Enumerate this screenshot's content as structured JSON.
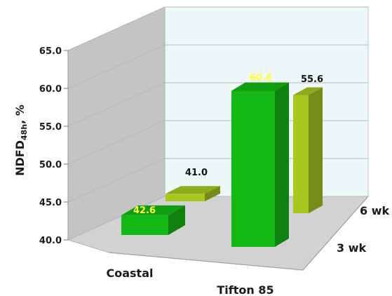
{
  "chart_data": {
    "type": "bar",
    "ylabel": "NDFD",
    "ylabel_subscript": "48h",
    "ylabel_suffix": ", %",
    "ylim": [
      40.0,
      65.0
    ],
    "yticks": [
      "40.0",
      "45.0",
      "50.0",
      "55.0",
      "60.0",
      "65.0"
    ],
    "categories": [
      "Coastal",
      "Tifton 85"
    ],
    "depth_labels": [
      "3 wk",
      "6 wk"
    ],
    "series": [
      {
        "depth": "3 wk",
        "values": [
          42.6,
          60.6
        ],
        "labels": [
          "42.6",
          "60.6"
        ],
        "color": "#14b814",
        "label_color": "#ffff33"
      },
      {
        "depth": "6 wk",
        "values": [
          41.0,
          55.6
        ],
        "labels": [
          "41.0",
          "55.6"
        ],
        "color": "#a8c820",
        "label_color": "#111111"
      }
    ],
    "grid": true
  }
}
